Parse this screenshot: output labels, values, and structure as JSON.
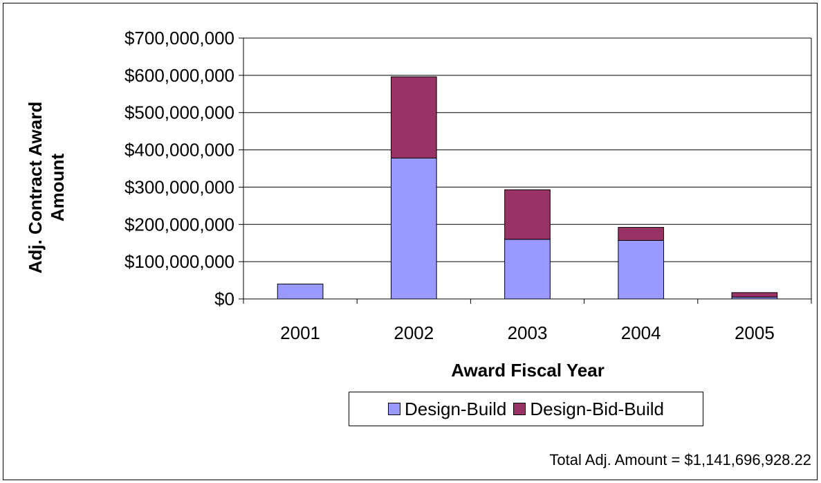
{
  "chart_data": {
    "type": "bar",
    "stacked": true,
    "categories": [
      "2001",
      "2002",
      "2003",
      "2004",
      "2005"
    ],
    "series": [
      {
        "name": "Design-Build",
        "color": "#9999FF",
        "values": [
          40000000,
          378000000,
          160000000,
          157000000,
          5000000
        ]
      },
      {
        "name": "Design-Bid-Build",
        "color": "#993366",
        "values": [
          0,
          218000000,
          133000000,
          35000000,
          12000000
        ]
      }
    ],
    "yticks": [
      "$0",
      "$100,000,000",
      "$200,000,000",
      "$300,000,000",
      "$400,000,000",
      "$500,000,000",
      "$600,000,000",
      "$700,000,000"
    ],
    "ylim": [
      0,
      700000000
    ],
    "ylabel_line1": "Adj. Contract Award",
    "ylabel_line2": "Amount",
    "xlabel": "Award Fiscal Year",
    "grid": true,
    "legend_position": "bottom"
  },
  "footnote": "Total Adj. Amount = $1,141,696,928.22"
}
